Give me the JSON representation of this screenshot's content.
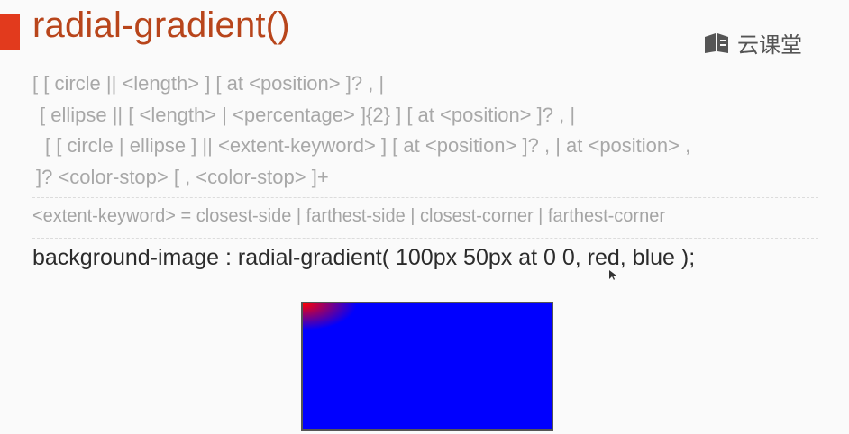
{
  "header": {
    "title": "radial-gradient()",
    "logo_text": "云课堂"
  },
  "syntax": {
    "lines": [
      "[ [ circle || <length> ] [ at <position> ]? , |",
      "[ ellipse || [ <length> | <percentage> ]{2} ] [ at <position> ]? , |",
      "[ [ circle | ellipse ] || <extent-keyword> ] [ at <position> ]? , | at <position> ,",
      "]?  <color-stop> [ , <color-stop> ]+"
    ]
  },
  "keyword_definition": "<extent-keyword> = closest-side | farthest-side | closest-corner | farthest-corner",
  "example_code": "background-image : radial-gradient( 100px 50px at 0 0, red, blue );",
  "demo": {
    "gradient_colors": [
      "#ff0000",
      "#0000ff"
    ]
  },
  "colors": {
    "accent": "#e23a1d",
    "title": "#b8451b",
    "syntax_text": "#a8a8a8",
    "code_text": "#2b2b2b"
  }
}
